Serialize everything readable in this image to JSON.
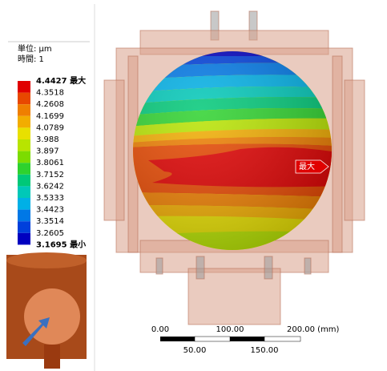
{
  "header": {
    "unit": "単位: μm",
    "time": "時間: 1"
  },
  "legend": {
    "labels": [
      "4.4427 最大",
      "4.3518",
      "4.2608",
      "4.1699",
      "4.0789",
      "3.988",
      "3.897",
      "3.8061",
      "3.7152",
      "3.6242",
      "3.5333",
      "3.4423",
      "3.3514",
      "3.2605",
      "3.1695 最小"
    ],
    "colors": [
      "#e00000",
      "#e84800",
      "#ef7f00",
      "#f2ad00",
      "#e8e000",
      "#b8e400",
      "#7cdc00",
      "#2ed22e",
      "#00c878",
      "#00c8b8",
      "#00b0e6",
      "#0078e6",
      "#0040dc",
      "#0000c0"
    ]
  },
  "probe": {
    "label": "最大"
  },
  "scale_bar": {
    "top_labels": [
      "0.00",
      "100.00",
      "200.00 (mm)"
    ],
    "bottom_labels": [
      "50.00",
      "150.00"
    ]
  }
}
